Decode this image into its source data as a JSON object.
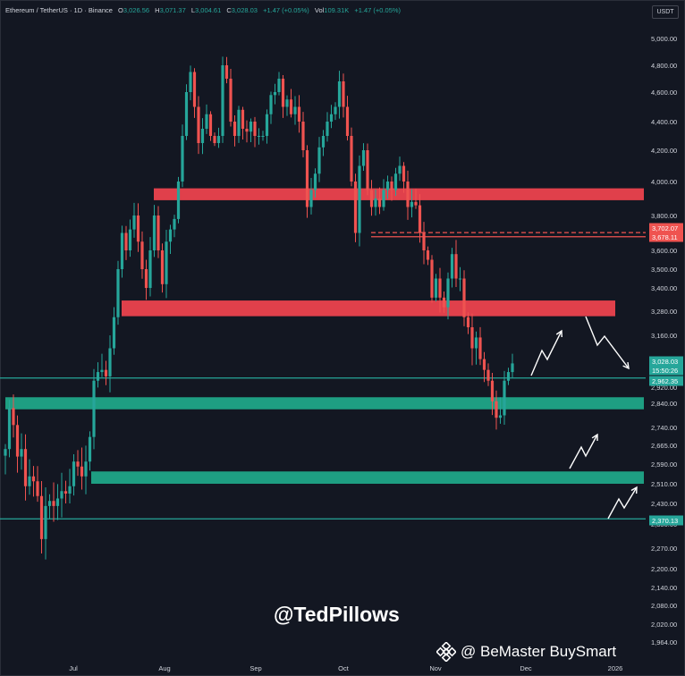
{
  "header": {
    "symbol": "Ethereum / TetherUS · 1D · Binance",
    "o_label": "O",
    "o_value": "3,026.56",
    "h_label": "H",
    "h_value": "3,071.37",
    "l_label": "L",
    "l_value": "3,004.61",
    "c_label": "C",
    "c_value": "3,028.03",
    "change": "+1.47 (+0.05%)",
    "vol_label": "Vol",
    "vol_value": "109.31K",
    "vol_change": "+1.47 (+0.05%)"
  },
  "unit_badge": "USDT",
  "watermark": "@TedPillows",
  "credit": "@ BeMaster BuySmart",
  "colors": {
    "bg": "#131722",
    "up": "#26a69a",
    "down": "#ef5350",
    "resistance": "#e0404b",
    "support": "#1e9e82",
    "text": "#d1d4dc"
  },
  "chart_data": {
    "type": "candlestick",
    "x_tick_labels": [
      "Jul",
      "Aug",
      "Sep",
      "Oct",
      "Nov",
      "Dec",
      "2026"
    ],
    "y_tick_labels": [
      "5,000.00",
      "4,800.00",
      "4,600.00",
      "4,400.00",
      "4,200.00",
      "4,000.00",
      "3,800.00",
      "3,600.00",
      "3,500.00",
      "3,400.00",
      "3,280.00",
      "3,160.00",
      "2,920.00",
      "2,840.00",
      "2,740.00",
      "2,665.00",
      "2,590.00",
      "2,510.00",
      "2,430.00",
      "2,350.00",
      "2,270.00",
      "2,200.00",
      "2,140.00",
      "2,080.00",
      "2,020.00",
      "1,964.00"
    ],
    "price_labels": [
      {
        "value": "3,702.07",
        "color": "#ef5350"
      },
      {
        "value": "3,678.11",
        "color": "#ef5350"
      },
      {
        "value": "3,028.03",
        "color": "#26a69a"
      },
      {
        "value": "15:50:26",
        "color": "#26a69a"
      },
      {
        "value": "2,962.35",
        "color": "#26a69a"
      },
      {
        "value": "2,370.13",
        "color": "#26a69a"
      }
    ],
    "zones": [
      {
        "kind": "resistance",
        "from": 3890,
        "to": 3960
      },
      {
        "kind": "resistance",
        "from": 3255,
        "to": 3335
      },
      {
        "kind": "support",
        "from": 2815,
        "to": 2870
      },
      {
        "kind": "support",
        "from": 2510,
        "to": 2560
      }
    ],
    "lines": [
      {
        "value": 3702.07,
        "color": "#ef5350",
        "dashed": true
      },
      {
        "value": 3678.11,
        "color": "#ef5350",
        "dashed": false
      },
      {
        "value": 2962.35,
        "color": "#26a69a",
        "dashed": false
      },
      {
        "value": 2370.13,
        "color": "#26a69a",
        "dashed": false
      }
    ],
    "path": [
      [
        0,
        2650
      ],
      [
        1,
        2820
      ],
      [
        2,
        2750
      ],
      [
        3,
        2620
      ],
      [
        4,
        2650
      ],
      [
        5,
        2500
      ],
      [
        6,
        2540
      ],
      [
        7,
        2520
      ],
      [
        8,
        2460
      ],
      [
        9,
        2300
      ],
      [
        10,
        2420
      ],
      [
        11,
        2440
      ],
      [
        12,
        2420
      ],
      [
        13,
        2450
      ],
      [
        14,
        2480
      ],
      [
        15,
        2470
      ],
      [
        16,
        2500
      ],
      [
        17,
        2600
      ],
      [
        18,
        2580
      ],
      [
        19,
        2540
      ],
      [
        20,
        2600
      ],
      [
        21,
        2700
      ],
      [
        22,
        2950
      ],
      [
        23,
        2990
      ],
      [
        24,
        3000
      ],
      [
        25,
        2970
      ],
      [
        26,
        3100
      ],
      [
        27,
        3250
      ],
      [
        28,
        3500
      ],
      [
        29,
        3700
      ],
      [
        30,
        3600
      ],
      [
        31,
        3720
      ],
      [
        32,
        3800
      ],
      [
        33,
        3650
      ],
      [
        34,
        3500
      ],
      [
        35,
        3400
      ],
      [
        36,
        3600
      ],
      [
        37,
        3800
      ],
      [
        38,
        3600
      ],
      [
        39,
        3420
      ],
      [
        40,
        3650
      ],
      [
        41,
        3720
      ],
      [
        42,
        3780
      ],
      [
        43,
        4000
      ],
      [
        44,
        4300
      ],
      [
        45,
        4600
      ],
      [
        46,
        4750
      ],
      [
        47,
        4500
      ],
      [
        48,
        4250
      ],
      [
        49,
        4350
      ],
      [
        50,
        4450
      ],
      [
        51,
        4300
      ],
      [
        52,
        4250
      ],
      [
        53,
        4300
      ],
      [
        54,
        4800
      ],
      [
        55,
        4700
      ],
      [
        56,
        4400
      ],
      [
        57,
        4300
      ],
      [
        58,
        4480
      ],
      [
        59,
        4350
      ],
      [
        60,
        4330
      ],
      [
        61,
        4400
      ],
      [
        62,
        4300
      ],
      [
        63,
        4300
      ],
      [
        64,
        4300
      ],
      [
        65,
        4450
      ],
      [
        66,
        4580
      ],
      [
        67,
        4600
      ],
      [
        68,
        4700
      ],
      [
        69,
        4500
      ],
      [
        70,
        4550
      ],
      [
        71,
        4450
      ],
      [
        72,
        4500
      ],
      [
        73,
        4400
      ],
      [
        74,
        4200
      ],
      [
        75,
        3850
      ],
      [
        76,
        3950
      ],
      [
        77,
        4050
      ],
      [
        78,
        4220
      ],
      [
        79,
        4300
      ],
      [
        80,
        4400
      ],
      [
        81,
        4450
      ],
      [
        82,
        4500
      ],
      [
        83,
        4680
      ],
      [
        84,
        4500
      ],
      [
        85,
        4300
      ],
      [
        86,
        4000
      ],
      [
        87,
        3700
      ],
      [
        88,
        4100
      ],
      [
        89,
        4200
      ],
      [
        90,
        3950
      ],
      [
        91,
        3850
      ],
      [
        92,
        3900
      ],
      [
        93,
        3850
      ],
      [
        94,
        3950
      ],
      [
        95,
        4000
      ],
      [
        96,
        3950
      ],
      [
        97,
        4050
      ],
      [
        98,
        4100
      ],
      [
        99,
        4000
      ],
      [
        100,
        3850
      ],
      [
        101,
        3880
      ],
      [
        102,
        3860
      ],
      [
        103,
        3700
      ],
      [
        104,
        3600
      ],
      [
        105,
        3550
      ],
      [
        106,
        3350
      ],
      [
        107,
        3450
      ],
      [
        108,
        3350
      ],
      [
        109,
        3300
      ],
      [
        110,
        3450
      ],
      [
        111,
        3580
      ],
      [
        112,
        3450
      ],
      [
        113,
        3450
      ],
      [
        114,
        3250
      ],
      [
        115,
        3200
      ],
      [
        116,
        3100
      ],
      [
        117,
        3150
      ],
      [
        118,
        3050
      ],
      [
        119,
        3000
      ],
      [
        120,
        2950
      ],
      [
        121,
        2850
      ],
      [
        122,
        2780
      ],
      [
        123,
        2790
      ],
      [
        124,
        2950
      ],
      [
        125,
        2990
      ],
      [
        126,
        3030
      ]
    ]
  }
}
